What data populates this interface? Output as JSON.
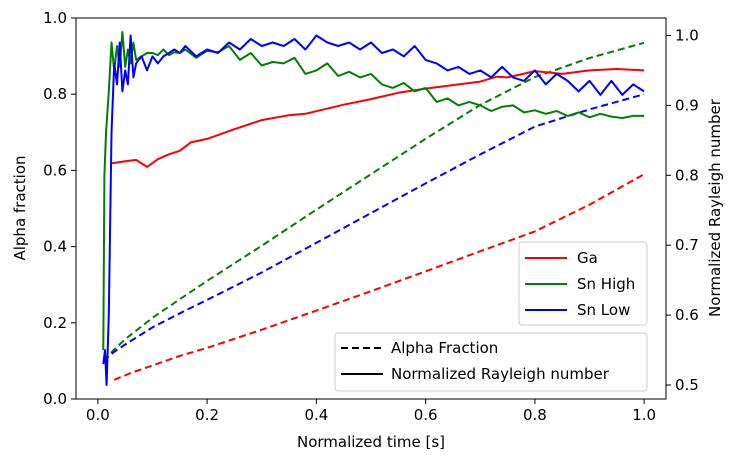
{
  "chart_data": {
    "type": "line",
    "title": "",
    "xlabel": "Normalized time [s]",
    "ylabel": "Alpha fraction",
    "y2label": "Normalized Rayleigh number",
    "xlim": [
      -0.04,
      1.04
    ],
    "ylim": [
      0,
      1.0
    ],
    "y2lim": [
      0.48,
      1.025
    ],
    "xticks": [
      0.0,
      0.2,
      0.4,
      0.6,
      0.8,
      1.0
    ],
    "xtick_labels": [
      "0.0",
      "0.2",
      "0.4",
      "0.6",
      "0.8",
      "1.0"
    ],
    "yticks": [
      0.0,
      0.2,
      0.4,
      0.6,
      0.8,
      1.0
    ],
    "ytick_labels": [
      "0.0",
      "0.2",
      "0.4",
      "0.6",
      "0.8",
      "1.0"
    ],
    "y2ticks": [
      0.5,
      0.6,
      0.7,
      0.8,
      0.9,
      1.0
    ],
    "y2tick_labels": [
      "0.5",
      "0.6",
      "0.7",
      "0.8",
      "0.9",
      "1.0"
    ],
    "colors": {
      "Ga": "#ff0000",
      "Sn High": "#008000",
      "Sn Low": "#0000ff"
    },
    "legend_series": {
      "position": "center-right",
      "entries": [
        "Ga",
        "Sn High",
        "Sn Low"
      ]
    },
    "legend_styles": {
      "position": "bottom-right",
      "entries": [
        "Alpha Fraction",
        "Normalized Rayleigh number"
      ]
    },
    "series": [
      {
        "name": "Ga",
        "style": "dashed",
        "axis": "left",
        "x": [
          0.03,
          0.06,
          0.1,
          0.15,
          0.2,
          0.3,
          0.4,
          0.5,
          0.6,
          0.7,
          0.8,
          0.9,
          1.0
        ],
        "values": [
          0.05,
          0.068,
          0.088,
          0.113,
          0.134,
          0.182,
          0.232,
          0.283,
          0.335,
          0.388,
          0.44,
          0.51,
          0.59
        ]
      },
      {
        "name": "Sn High",
        "style": "dashed",
        "axis": "left",
        "x": [
          0.01,
          0.03,
          0.05,
          0.1,
          0.15,
          0.2,
          0.3,
          0.4,
          0.5,
          0.6,
          0.7,
          0.8,
          0.9,
          1.0
        ],
        "values": [
          0.1,
          0.13,
          0.157,
          0.213,
          0.262,
          0.31,
          0.402,
          0.497,
          0.59,
          0.683,
          0.772,
          0.845,
          0.895,
          0.935
        ]
      },
      {
        "name": "Sn Low",
        "style": "dashed",
        "axis": "left",
        "x": [
          0.01,
          0.03,
          0.05,
          0.1,
          0.15,
          0.2,
          0.3,
          0.4,
          0.5,
          0.6,
          0.7,
          0.8,
          0.9,
          1.0
        ],
        "values": [
          0.1,
          0.124,
          0.143,
          0.188,
          0.225,
          0.26,
          0.332,
          0.41,
          0.488,
          0.566,
          0.642,
          0.715,
          0.76,
          0.8
        ]
      },
      {
        "name": "Ga",
        "style": "solid",
        "axis": "right",
        "x": [
          0.025,
          0.05,
          0.07,
          0.09,
          0.11,
          0.13,
          0.15,
          0.17,
          0.2,
          0.25,
          0.3,
          0.35,
          0.38,
          0.45,
          0.5,
          0.55,
          0.6,
          0.65,
          0.7,
          0.73,
          0.75,
          0.8,
          0.85,
          0.9,
          0.95,
          1.0
        ],
        "values": [
          0.817,
          0.82,
          0.822,
          0.812,
          0.823,
          0.83,
          0.835,
          0.847,
          0.852,
          0.866,
          0.879,
          0.886,
          0.888,
          0.901,
          0.909,
          0.918,
          0.924,
          0.929,
          0.934,
          0.941,
          0.94,
          0.949,
          0.945,
          0.95,
          0.952,
          0.95
        ]
      },
      {
        "name": "Sn High",
        "style": "solid",
        "axis": "right",
        "x": [
          0.01,
          0.012,
          0.015,
          0.02,
          0.025,
          0.03,
          0.035,
          0.04,
          0.045,
          0.05,
          0.055,
          0.06,
          0.065,
          0.07,
          0.08,
          0.09,
          0.1,
          0.11,
          0.12,
          0.13,
          0.14,
          0.15,
          0.16,
          0.18,
          0.2,
          0.22,
          0.24,
          0.26,
          0.28,
          0.3,
          0.32,
          0.34,
          0.36,
          0.38,
          0.4,
          0.42,
          0.44,
          0.46,
          0.48,
          0.5,
          0.52,
          0.54,
          0.56,
          0.58,
          0.6,
          0.62,
          0.64,
          0.66,
          0.68,
          0.7,
          0.72,
          0.74,
          0.76,
          0.78,
          0.8,
          0.82,
          0.84,
          0.86,
          0.88,
          0.9,
          0.92,
          0.94,
          0.96,
          0.98,
          1.0
        ],
        "values": [
          0.55,
          0.8,
          0.86,
          0.92,
          0.99,
          0.95,
          0.985,
          0.955,
          1.005,
          0.955,
          0.98,
          0.96,
          0.99,
          0.965,
          0.97,
          0.975,
          0.975,
          0.972,
          0.98,
          0.972,
          0.976,
          0.975,
          0.98,
          0.968,
          0.978,
          0.976,
          0.985,
          0.965,
          0.975,
          0.957,
          0.962,
          0.96,
          0.968,
          0.945,
          0.95,
          0.96,
          0.942,
          0.948,
          0.94,
          0.945,
          0.93,
          0.925,
          0.932,
          0.92,
          0.925,
          0.905,
          0.91,
          0.9,
          0.905,
          0.9,
          0.892,
          0.898,
          0.9,
          0.89,
          0.893,
          0.888,
          0.892,
          0.885,
          0.89,
          0.883,
          0.888,
          0.884,
          0.882,
          0.885,
          0.885
        ]
      },
      {
        "name": "Sn Low",
        "style": "solid",
        "axis": "right",
        "x": [
          0.01,
          0.013,
          0.016,
          0.02,
          0.025,
          0.03,
          0.035,
          0.04,
          0.045,
          0.05,
          0.055,
          0.06,
          0.065,
          0.07,
          0.08,
          0.09,
          0.1,
          0.11,
          0.12,
          0.13,
          0.14,
          0.15,
          0.16,
          0.18,
          0.2,
          0.22,
          0.24,
          0.26,
          0.28,
          0.3,
          0.32,
          0.34,
          0.36,
          0.38,
          0.4,
          0.42,
          0.44,
          0.46,
          0.48,
          0.5,
          0.52,
          0.54,
          0.56,
          0.58,
          0.6,
          0.62,
          0.64,
          0.66,
          0.68,
          0.7,
          0.72,
          0.74,
          0.76,
          0.78,
          0.8,
          0.82,
          0.84,
          0.86,
          0.88,
          0.9,
          0.92,
          0.94,
          0.96,
          0.98,
          1.0
        ],
        "values": [
          0.53,
          0.55,
          0.5,
          0.6,
          0.86,
          0.96,
          0.93,
          0.99,
          0.92,
          0.95,
          0.93,
          1.0,
          0.94,
          0.96,
          0.97,
          0.95,
          0.97,
          0.96,
          0.97,
          0.975,
          0.98,
          0.975,
          0.985,
          0.97,
          0.98,
          0.975,
          0.99,
          0.98,
          0.995,
          0.985,
          0.99,
          0.985,
          0.995,
          0.98,
          1.0,
          0.99,
          0.985,
          0.99,
          0.98,
          0.99,
          0.975,
          0.98,
          0.97,
          0.985,
          0.965,
          0.96,
          0.95,
          0.955,
          0.945,
          0.95,
          0.94,
          0.955,
          0.94,
          0.935,
          0.95,
          0.93,
          0.945,
          0.935,
          0.92,
          0.935,
          0.915,
          0.935,
          0.915,
          0.93,
          0.92
        ]
      }
    ]
  }
}
